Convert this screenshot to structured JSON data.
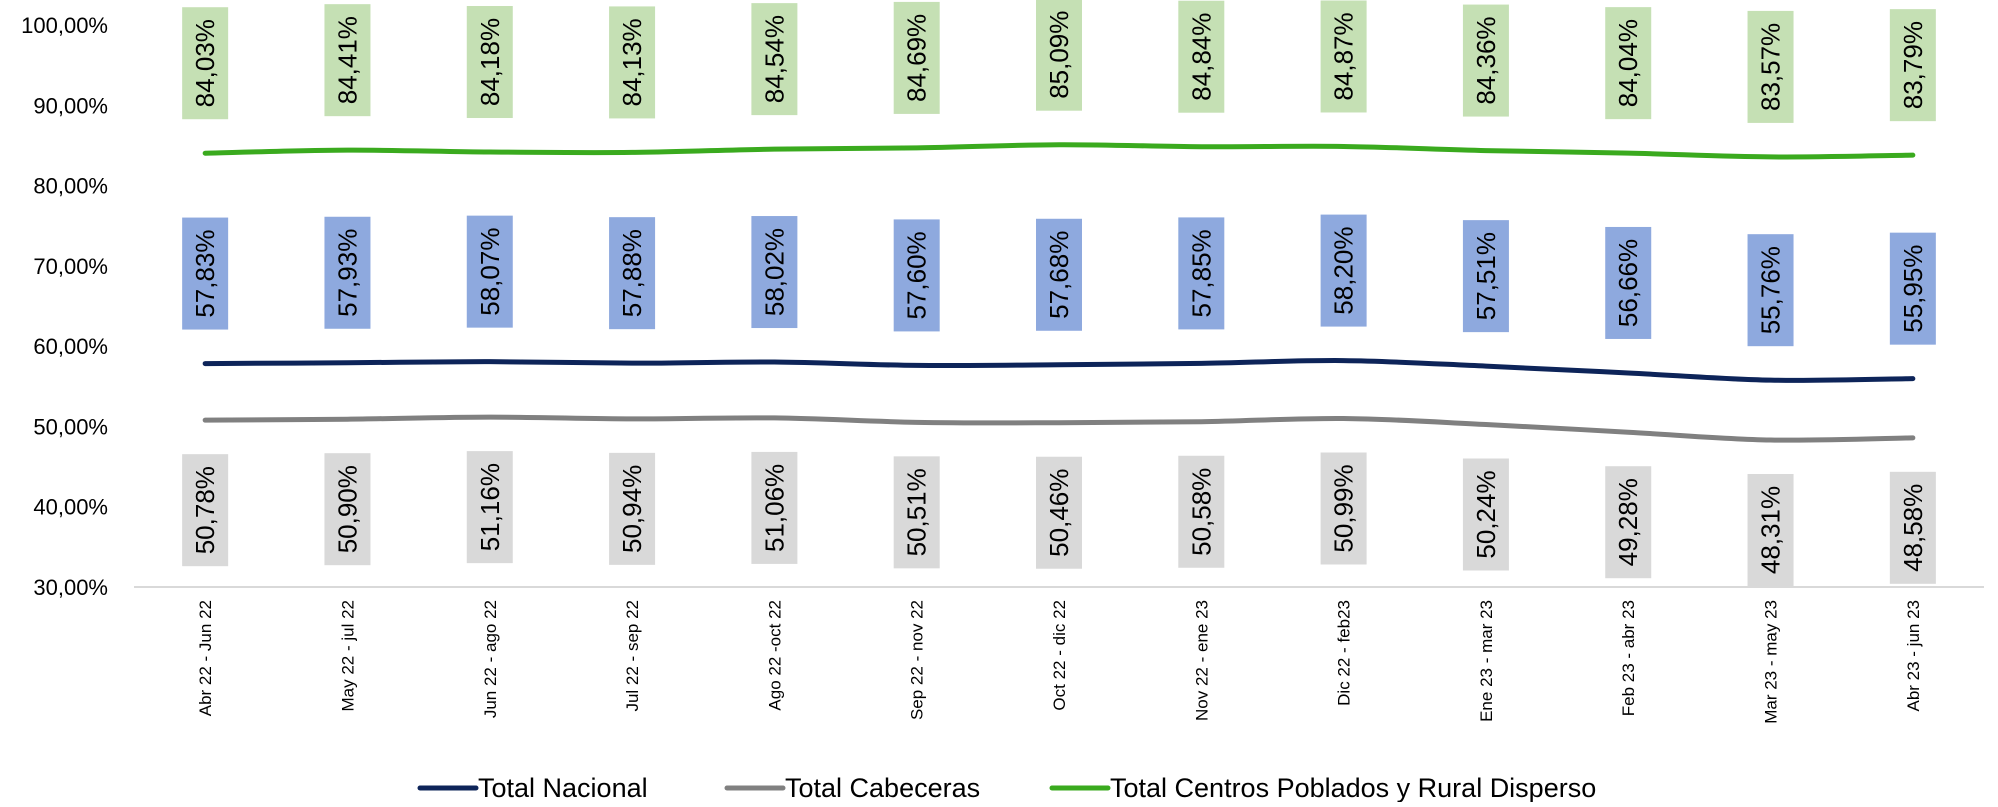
{
  "chart_data": {
    "type": "line",
    "categories": [
      "Abr 22 - Jun 22",
      "May 22 - jul 22",
      "Jun 22 - ago 22",
      "Jul 22 - sep 22",
      "Ago 22 -oct 22",
      "Sep 22 - nov 22",
      "Oct 22 - dic 22",
      "Nov 22 - ene 23",
      "Dic 22 - feb23",
      "Ene 23 - mar 23",
      "Feb 23 - abr 23",
      "Mar 23 - may 23",
      "Abr 23 - jun 23"
    ],
    "series": [
      {
        "name": "Total Nacional",
        "color": "#0d2459",
        "label_bg": "#8ea9de",
        "values": [
          57.83,
          57.93,
          58.07,
          57.88,
          58.02,
          57.6,
          57.68,
          57.85,
          58.2,
          57.51,
          56.66,
          55.76,
          55.95
        ],
        "labels": [
          "57,83%",
          "57,93%",
          "58,07%",
          "57,88%",
          "58,02%",
          "57,60%",
          "57,68%",
          "57,85%",
          "58,20%",
          "57,51%",
          "56,66%",
          "55,76%",
          "55,95%"
        ]
      },
      {
        "name": "Total Cabeceras",
        "color": "#808080",
        "label_bg": "#d9d9d9",
        "values": [
          50.78,
          50.9,
          51.16,
          50.94,
          51.06,
          50.51,
          50.46,
          50.58,
          50.99,
          50.24,
          49.28,
          48.31,
          48.58
        ],
        "labels": [
          "50,78%",
          "50,90%",
          "51,16%",
          "50,94%",
          "51,06%",
          "50,51%",
          "50,46%",
          "50,58%",
          "50,99%",
          "50,24%",
          "49,28%",
          "48,31%",
          "48,58%"
        ]
      },
      {
        "name": "Total Centros Poblados y Rural Disperso",
        "color": "#3aaa1e",
        "label_bg": "#c5e0b4",
        "values": [
          84.03,
          84.41,
          84.18,
          84.13,
          84.54,
          84.69,
          85.09,
          84.84,
          84.87,
          84.36,
          84.04,
          83.57,
          83.79
        ],
        "labels": [
          "84,03%",
          "84,41%",
          "84,18%",
          "84,13%",
          "84,54%",
          "84,69%",
          "85,09%",
          "84,84%",
          "84,87%",
          "84,36%",
          "84,04%",
          "83,57%",
          "83,79%"
        ]
      }
    ],
    "y_ticks": [
      "30,00%",
      "40,00%",
      "50,00%",
      "60,00%",
      "70,00%",
      "80,00%",
      "90,00%",
      "100,00%"
    ],
    "ylim": [
      30,
      100
    ],
    "title": "",
    "xlabel": "",
    "ylabel": "",
    "grid": false,
    "legend_position": "bottom"
  }
}
